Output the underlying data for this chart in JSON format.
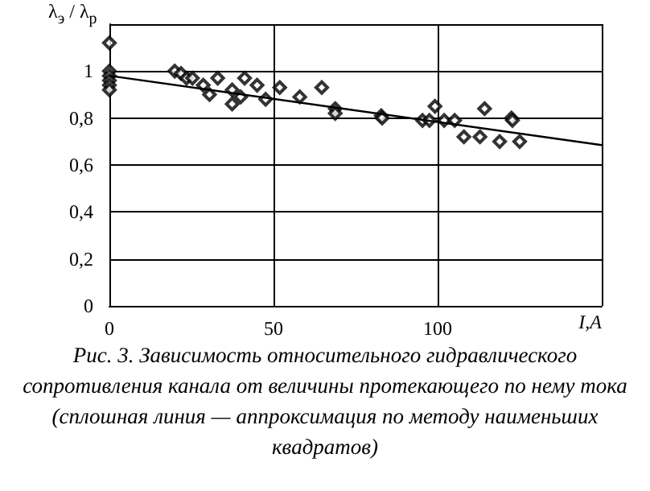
{
  "chart_data": {
    "type": "scatter",
    "xlabel": "I,A",
    "ylabel": "λ$_{э}$ / λ$_{р}$",
    "annotations": [
      "Рис. 3. Зависимость относительного гидравлического сопротивления канала от величины протекающего по нему тока (сплошная линия — аппроксимация по методу наименьших квадратов)"
    ],
    "xlim": [
      0,
      150
    ],
    "xticks": [
      0,
      50,
      100,
      {
        "value": 150,
        "label": null
      }
    ],
    "ylim": [
      0,
      1.2
    ],
    "yticks": [
      0,
      {
        "value": 0.2,
        "label": "0,2"
      },
      {
        "value": 0.4,
        "label": "0,4"
      },
      {
        "value": 0.6,
        "label": "0,6"
      },
      {
        "value": 0.8,
        "label": "0,8"
      },
      1,
      {
        "value": 1.2,
        "label": null
      }
    ],
    "grid": true,
    "series": [
      {
        "marker": "diamond",
        "color": "#000000",
        "x": [
          0,
          0,
          0,
          0,
          0,
          0,
          19.9,
          21.8,
          23.5,
          25.3,
          28.6,
          30.5,
          33,
          37.4,
          37.4,
          40,
          41.2,
          45,
          47.6,
          51.9,
          58,
          64.7,
          68.8,
          68.8,
          82.8,
          83.1,
          95.4,
          97.5,
          99.2,
          102,
          105.2,
          108,
          112.9,
          114.3,
          118.9,
          122.5,
          122.8,
          125
        ],
        "values": [
          1.12,
          1.0,
          0.98,
          0.96,
          0.94,
          0.92,
          1.0,
          0.99,
          0.97,
          0.97,
          0.94,
          0.9,
          0.97,
          0.92,
          0.86,
          0.89,
          0.97,
          0.94,
          0.88,
          0.93,
          0.89,
          0.93,
          0.84,
          0.82,
          0.81,
          0.8,
          0.79,
          0.79,
          0.85,
          0.79,
          0.79,
          0.72,
          0.72,
          0.84,
          0.7,
          0.8,
          0.79,
          0.7
        ]
      },
      {
        "type": "line",
        "marker": "none",
        "line_style": "solid",
        "color": "#000000",
        "x": [
          0,
          150
        ],
        "values": [
          0.98,
          0.685
        ]
      }
    ]
  }
}
